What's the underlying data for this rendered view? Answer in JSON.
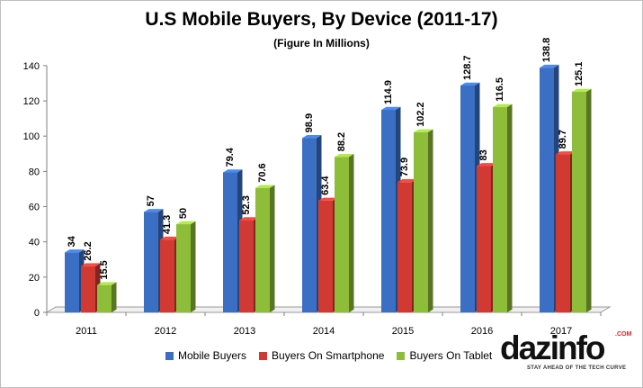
{
  "chart_data": {
    "type": "bar",
    "title": "U.S Mobile Buyers, By Device (2011-17)",
    "subtitle": "(Figure In Millions)",
    "categories": [
      "2011",
      "2012",
      "2013",
      "2014",
      "2015",
      "2016",
      "2017"
    ],
    "series": [
      {
        "name": "Mobile Buyers",
        "values": [
          34,
          57,
          79.4,
          98.9,
          114.9,
          128.7,
          138.8
        ],
        "labels": [
          "34",
          "57",
          "79.4",
          "98.9",
          "114.9",
          "128.7",
          "138.8"
        ],
        "color": "#3a6fc4"
      },
      {
        "name": "Buyers On Smartphone",
        "values": [
          26.2,
          41.3,
          52.3,
          63.4,
          73.9,
          83,
          89.7
        ],
        "labels": [
          "26.2",
          "41.3",
          "52.3",
          "63.4",
          "73.9",
          "83",
          "89.7"
        ],
        "color": "#d13a32"
      },
      {
        "name": "Buyers On Tablet",
        "values": [
          15.5,
          50,
          70.6,
          88.2,
          102.2,
          116.5,
          125.1
        ],
        "labels": [
          "15.5",
          "50",
          "70.6",
          "88.2",
          "102.2",
          "116.5",
          "125.1"
        ],
        "color": "#8ebd3a"
      }
    ],
    "y_ticks": [
      "0",
      "20",
      "40",
      "60",
      "80",
      "100",
      "120",
      "140"
    ],
    "ylim": [
      0,
      140
    ],
    "xlabel": "",
    "ylabel": "",
    "grid": false,
    "legend_position": "bottom"
  },
  "logo": {
    "text_a": "daz",
    "text_b": "info",
    "com": ".COM",
    "tagline": "STAY AHEAD OF THE TECH CURVE"
  }
}
